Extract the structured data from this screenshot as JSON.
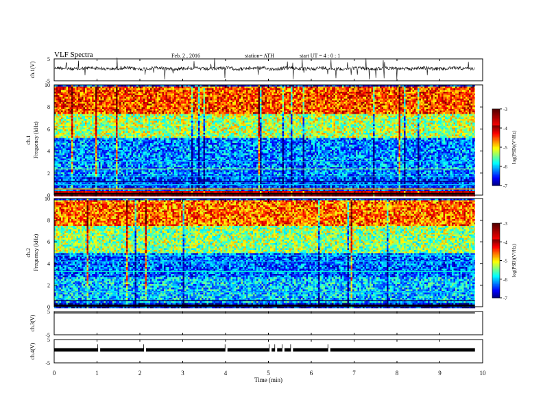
{
  "header": {
    "title": "VLF  Spectra",
    "date": "Feb. 2  , 2016",
    "station": "station= ATH",
    "start": "start  UT  =   4 : 0  : 1"
  },
  "chart_data": [
    {
      "type": "line",
      "panel": "ch1-waveform",
      "ylabel": "ch.1(V)",
      "yticks": [
        "5",
        "-5"
      ],
      "ylim": [
        -5,
        5
      ],
      "xlim": [
        0,
        10
      ],
      "x_range": [
        0,
        9.82
      ],
      "baseline": 0,
      "note_values": "noisy waveform near 0 V with sporadic spikes"
    },
    {
      "type": "heatmap",
      "panel": "ch1-spectrogram",
      "ylabel_lines": [
        "ch.1",
        "Frequency  (kHz)"
      ],
      "yticks": [
        "10",
        "8",
        "6",
        "4",
        "2",
        "0"
      ],
      "ylim": [
        0,
        10
      ],
      "xlim": [
        0,
        10
      ],
      "x_range": [
        0,
        9.82
      ],
      "colorbar": {
        "label": "log(PSD)(V²/Hz)",
        "ticks": [
          "-3",
          "-4",
          "-5",
          "-6",
          "-7"
        ],
        "range": [
          -7,
          -3
        ]
      },
      "band_psd_kHz": [
        [
          0,
          0.5,
          -3.8
        ],
        [
          0.5,
          1.8,
          -6.4
        ],
        [
          1.8,
          5.2,
          -6.2
        ],
        [
          5.2,
          7.5,
          -5.3
        ],
        [
          7.5,
          10,
          -4.5
        ]
      ]
    },
    {
      "type": "heatmap",
      "panel": "ch2-spectrogram",
      "ylabel_lines": [
        "ch.2",
        "Frequency  (kHz)"
      ],
      "yticks": [
        "10",
        "8",
        "6",
        "4",
        "2",
        "0"
      ],
      "ylim": [
        0,
        10
      ],
      "xlim": [
        0,
        10
      ],
      "x_range": [
        0,
        9.82
      ],
      "colorbar": {
        "label": "log(PSD)(V²/Hz)",
        "ticks": [
          "-3",
          "-4",
          "-5",
          "-6",
          "-7"
        ],
        "range": [
          -7,
          -3
        ]
      },
      "band_psd_kHz": [
        [
          0,
          0.5,
          -6.6
        ],
        [
          0.5,
          2.8,
          -6.0
        ],
        [
          2.8,
          5.0,
          -6.3
        ],
        [
          5.0,
          7.5,
          -5.4
        ],
        [
          7.5,
          10,
          -4.6
        ]
      ]
    },
    {
      "type": "line",
      "panel": "ch3-waveform",
      "ylabel": "ch.3(V)",
      "yticks": [
        "5",
        "-5"
      ],
      "ylim": [
        -5,
        5
      ],
      "xlim": [
        0,
        10
      ],
      "x_range": [
        0,
        9.82
      ],
      "baseline": 5
    },
    {
      "type": "line",
      "panel": "ch4-waveform",
      "ylabel": "ch.4(V)",
      "yticks": [
        "5",
        "-5"
      ],
      "ylim": [
        -5,
        5
      ],
      "xlim": [
        0,
        10
      ],
      "x_range": [
        0,
        9.82
      ],
      "baseline": 0,
      "gaps_min": [
        1.05,
        2.12,
        4.02,
        5.05,
        5.18,
        5.35,
        5.55,
        6.42
      ]
    }
  ],
  "x_axis": {
    "label": "Time  (min)",
    "ticks": [
      "0",
      "1",
      "2",
      "3",
      "4",
      "5",
      "6",
      "7",
      "8",
      "9",
      "10"
    ]
  }
}
